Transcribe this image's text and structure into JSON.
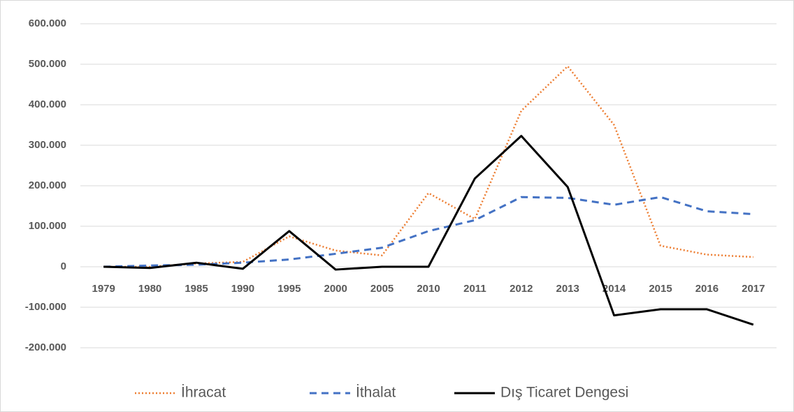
{
  "chart_data": {
    "type": "line",
    "categories": [
      "1979",
      "1980",
      "1985",
      "1990",
      "1995",
      "2000",
      "2005",
      "2010",
      "2011",
      "2012",
      "2013",
      "2014",
      "2015",
      "2016",
      "2017"
    ],
    "series": [
      {
        "name": "İhracat",
        "color": "#ed7d31",
        "style": "dotted",
        "values": [
          0,
          0,
          8000,
          12000,
          75000,
          40000,
          28000,
          182000,
          118000,
          385000,
          495000,
          350000,
          52000,
          30000,
          24000
        ]
      },
      {
        "name": "İthalat",
        "color": "#4472c4",
        "style": "dashed",
        "values": [
          0,
          3000,
          5000,
          10000,
          18000,
          32000,
          47000,
          88000,
          115000,
          172000,
          170000,
          153000,
          172000,
          137000,
          130000
        ]
      },
      {
        "name": "Dış Ticaret Dengesi",
        "color": "#000000",
        "style": "solid",
        "values": [
          0,
          -3000,
          10000,
          -5000,
          88000,
          -7000,
          0,
          0,
          218000,
          323000,
          197000,
          -120000,
          -105000,
          -105000,
          -143000
        ]
      }
    ],
    "ylim": [
      -200000,
      600000
    ],
    "yticks": [
      {
        "value": -200000,
        "label": "-200.000"
      },
      {
        "value": -100000,
        "label": "-100.000"
      },
      0,
      {
        "value": 100000,
        "label": "100.000"
      },
      {
        "value": 200000,
        "label": "200.000"
      },
      {
        "value": 300000,
        "label": "300.000"
      },
      {
        "value": 400000,
        "label": "400.000"
      },
      {
        "value": 500000,
        "label": "500.000"
      },
      {
        "value": 600000,
        "label": "600.000"
      }
    ],
    "grid": true,
    "legend": "bottom"
  }
}
